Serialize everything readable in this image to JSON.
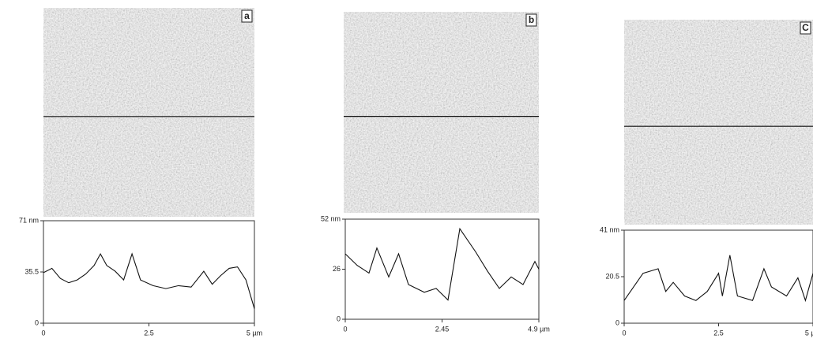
{
  "chart_data": [
    {
      "type": "line",
      "panel_label": "a",
      "x": [
        0,
        0.2,
        0.4,
        0.6,
        0.8,
        1.0,
        1.2,
        1.35,
        1.5,
        1.7,
        1.9,
        2.1,
        2.3,
        2.6,
        2.9,
        3.2,
        3.5,
        3.8,
        4.0,
        4.2,
        4.4,
        4.6,
        4.8,
        5.0
      ],
      "values": [
        35,
        38,
        31,
        28,
        30,
        34,
        40,
        48,
        40,
        36,
        30,
        48,
        30,
        26,
        24,
        26,
        25,
        36,
        27,
        33,
        38,
        39,
        30,
        10
      ],
      "color": "#111",
      "xlim": [
        0,
        5
      ],
      "xticks": [
        0,
        2.5,
        {
          "value": 5,
          "label": "5 µm"
        }
      ],
      "ylim": [
        0,
        71
      ],
      "yticks": [
        0,
        35.5,
        {
          "value": 71,
          "label": "71 nm"
        }
      ]
    },
    {
      "type": "line",
      "panel_label": "b",
      "x": [
        0,
        0.3,
        0.6,
        0.8,
        1.1,
        1.35,
        1.6,
        2.0,
        2.3,
        2.6,
        2.9,
        3.3,
        3.6,
        3.9,
        4.2,
        4.5,
        4.8,
        4.9
      ],
      "values": [
        34,
        28,
        24,
        37,
        22,
        34,
        18,
        14,
        16,
        10,
        47,
        35,
        25,
        16,
        22,
        18,
        30,
        26
      ],
      "color": "#111",
      "xlim": [
        0,
        4.9
      ],
      "xticks": [
        0,
        2.45,
        {
          "value": 4.9,
          "label": "4.9 µm"
        }
      ],
      "ylim": [
        0,
        52
      ],
      "yticks": [
        0,
        26,
        {
          "value": 52,
          "label": "52 nm"
        }
      ]
    },
    {
      "type": "line",
      "panel_label": "C",
      "x": [
        0,
        0.5,
        0.9,
        1.1,
        1.3,
        1.6,
        1.9,
        2.2,
        2.5,
        2.6,
        2.8,
        3.0,
        3.4,
        3.7,
        3.9,
        4.3,
        4.6,
        4.8,
        5.0
      ],
      "values": [
        10,
        22,
        24,
        14,
        18,
        12,
        10,
        14,
        22,
        12,
        30,
        12,
        10,
        24,
        16,
        12,
        20,
        10,
        22
      ],
      "color": "#111",
      "xlim": [
        0,
        5
      ],
      "xticks": [
        0,
        2.5,
        {
          "value": 5,
          "label": "5 µm"
        }
      ],
      "ylim": [
        0,
        41
      ],
      "yticks": [
        0,
        20.5,
        {
          "value": 41,
          "label": "41 nm"
        }
      ]
    }
  ]
}
